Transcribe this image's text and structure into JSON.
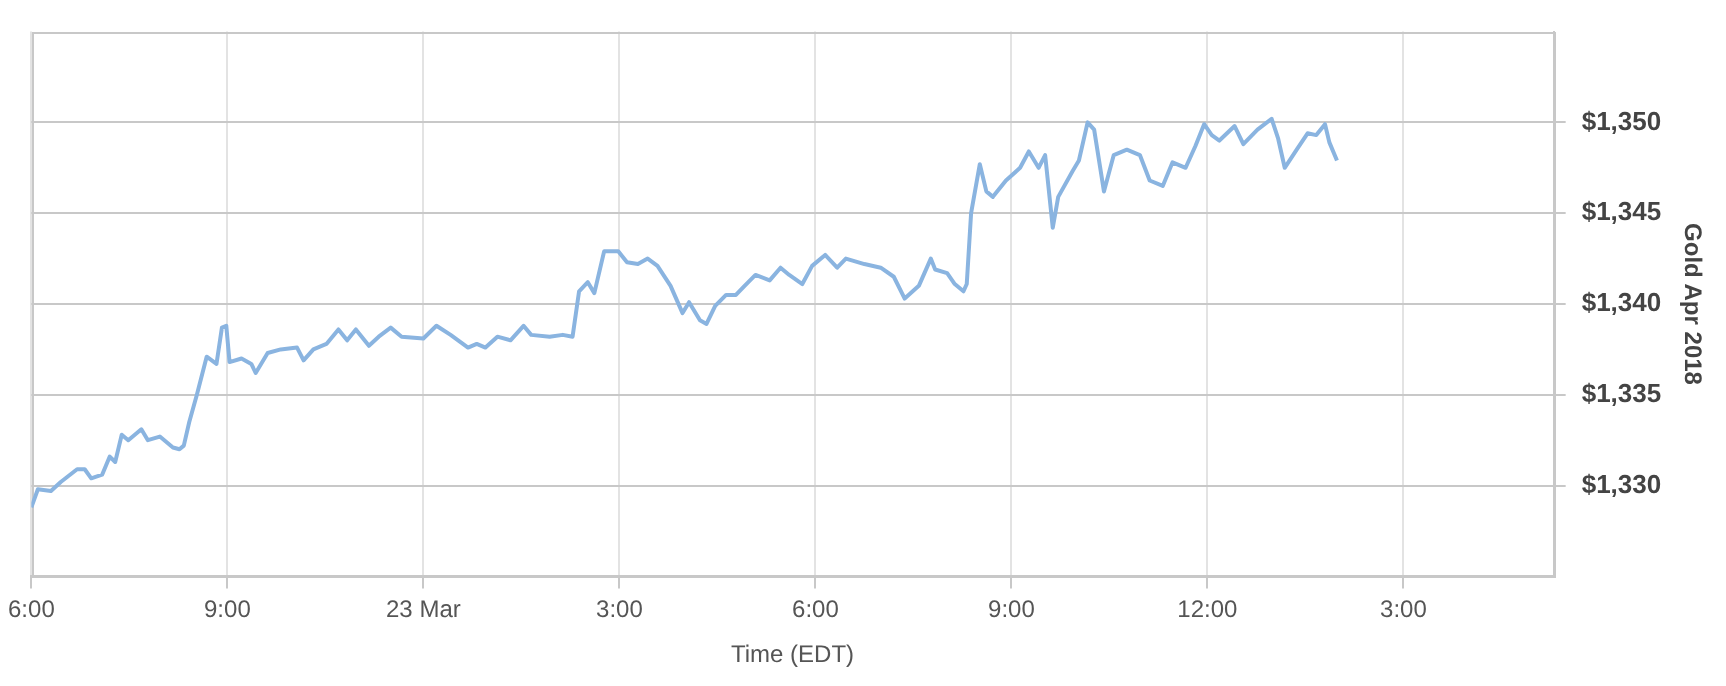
{
  "chart_data": {
    "type": "line",
    "xlabel": "Time (EDT)",
    "ylabel": "Gold Apr 2018",
    "x": [
      "--03-22T18:00",
      "--03-22T18:06",
      "--03-22T18:18",
      "--03-22T18:27",
      "--03-22T18:42",
      "--03-22T18:49",
      "--03-22T18:55",
      "--03-22T19:05",
      "--03-22T19:12",
      "--03-22T19:17",
      "--03-22T19:23",
      "--03-22T19:29",
      "--03-22T19:41",
      "--03-22T19:47",
      "--03-22T19:58",
      "--03-22T20:10",
      "--03-22T20:16",
      "--03-22T20:20",
      "--03-22T20:25",
      "--03-22T20:32",
      "--03-22T20:41",
      "--03-22T20:50",
      "--03-22T20:55",
      "--03-22T20:59",
      "--03-22T21:02",
      "--03-22T21:13",
      "--03-22T21:22",
      "--03-22T21:26",
      "--03-22T21:37",
      "--03-22T21:49",
      "--03-22T22:04",
      "--03-22T22:10",
      "--03-22T22:19",
      "--03-22T22:31",
      "--03-22T22:42",
      "--03-22T22:50",
      "--03-22T22:58",
      "--03-22T23:10",
      "--03-22T23:19",
      "--03-22T23:30",
      "--03-22T23:40",
      "--03-23T00:00",
      "--03-23T00:12",
      "--03-23T00:25",
      "--03-23T00:41",
      "--03-23T00:49",
      "--03-23T00:57",
      "--03-23T01:08",
      "--03-23T01:20",
      "--03-23T01:32",
      "--03-23T01:39",
      "--03-23T01:56",
      "--03-23T02:08",
      "--03-23T02:17",
      "--03-23T02:23",
      "--03-23T02:31",
      "--03-23T02:37",
      "--03-23T02:46",
      "--03-23T02:59",
      "--03-23T03:07",
      "--03-23T03:17",
      "--03-23T03:26",
      "--03-23T03:35",
      "--03-23T03:47",
      "--03-23T03:58",
      "--03-23T04:04",
      "--03-23T04:14",
      "--03-23T04:20",
      "--03-23T04:28",
      "--03-23T04:38",
      "--03-23T04:47",
      "--03-23T04:55",
      "--03-23T05:05",
      "--03-23T05:18",
      "--03-23T05:28",
      "--03-23T05:36",
      "--03-23T05:48",
      "--03-23T05:57",
      "--03-23T06:09",
      "--03-23T06:20",
      "--03-23T06:28",
      "--03-23T06:45",
      "--03-23T07:00",
      "--03-23T07:12",
      "--03-23T07:22",
      "--03-23T07:35",
      "--03-23T07:46",
      "--03-23T07:50",
      "--03-23T08:01",
      "--03-23T08:08",
      "--03-23T08:16",
      "--03-23T08:19",
      "--03-23T08:23",
      "--03-23T08:31",
      "--03-23T08:37",
      "--03-23T08:43",
      "--03-23T08:55",
      "--03-23T09:08",
      "--03-23T09:16",
      "--03-23T09:25",
      "--03-23T09:31",
      "--03-23T09:38",
      "--03-23T09:43",
      "--03-23T09:56",
      "--03-23T10:02",
      "--03-23T10:10",
      "--03-23T10:16",
      "--03-23T10:25",
      "--03-23T10:34",
      "--03-23T10:46",
      "--03-23T10:58",
      "--03-23T11:07",
      "--03-23T11:19",
      "--03-23T11:28",
      "--03-23T11:40",
      "--03-23T11:49",
      "--03-23T11:57",
      "--03-23T12:04",
      "--03-23T12:11",
      "--03-23T12:25",
      "--03-23T12:33",
      "--03-23T12:46",
      "--03-23T12:59",
      "--03-23T13:05",
      "--03-23T13:11",
      "--03-23T13:22",
      "--03-23T13:32",
      "--03-23T13:40",
      "--03-23T13:48",
      "--03-23T13:52",
      "--03-23T13:59"
    ],
    "series": [
      {
        "color": "#8ab4e0",
        "values": [
          1328.8,
          1329.8,
          1329.7,
          1330.2,
          1330.9,
          1330.9,
          1330.4,
          1330.6,
          1331.6,
          1331.3,
          1332.8,
          1332.5,
          1333.1,
          1332.5,
          1332.7,
          1332.1,
          1332.0,
          1332.2,
          1333.5,
          1335.0,
          1337.1,
          1336.7,
          1338.7,
          1338.8,
          1336.8,
          1337.0,
          1336.7,
          1336.2,
          1337.3,
          1337.5,
          1337.6,
          1336.9,
          1337.5,
          1337.8,
          1338.6,
          1338.0,
          1338.6,
          1337.7,
          1338.2,
          1338.7,
          1338.2,
          1338.1,
          1338.8,
          1338.3,
          1337.6,
          1337.8,
          1337.6,
          1338.2,
          1338.0,
          1338.8,
          1338.3,
          1338.2,
          1338.3,
          1338.2,
          1340.7,
          1341.2,
          1340.6,
          1342.9,
          1342.9,
          1342.3,
          1342.2,
          1342.5,
          1342.1,
          1341.0,
          1339.5,
          1340.1,
          1339.1,
          1338.9,
          1339.9,
          1340.5,
          1340.5,
          1341.0,
          1341.6,
          1341.3,
          1342.0,
          1341.6,
          1341.1,
          1342.1,
          1342.7,
          1342.0,
          1342.5,
          1342.2,
          1342.0,
          1341.5,
          1340.3,
          1341.0,
          1342.5,
          1341.9,
          1341.7,
          1341.1,
          1340.7,
          1341.1,
          1345.0,
          1347.7,
          1346.2,
          1345.9,
          1346.8,
          1347.5,
          1348.4,
          1347.5,
          1348.2,
          1344.2,
          1345.9,
          1347.3,
          1347.9,
          1350.0,
          1349.6,
          1346.2,
          1348.2,
          1348.5,
          1348.2,
          1346.8,
          1346.5,
          1347.8,
          1347.5,
          1348.7,
          1349.9,
          1349.3,
          1349.0,
          1349.8,
          1348.8,
          1349.6,
          1350.2,
          1349.1,
          1347.5,
          1348.5,
          1349.4,
          1349.3,
          1349.9,
          1348.9,
          1347.9
        ]
      }
    ],
    "xlim": [
      "--03-22T18:00",
      "--03-23T17:18"
    ],
    "xticks": [
      {
        "value": "--03-22T18:00",
        "label": "6:00"
      },
      {
        "value": "--03-22T21:00",
        "label": "9:00"
      },
      {
        "value": "--03-23T00:00",
        "label": "23 Mar"
      },
      {
        "value": "--03-23T03:00",
        "label": "3:00"
      },
      {
        "value": "--03-23T06:00",
        "label": "6:00"
      },
      {
        "value": "--03-23T09:00",
        "label": "9:00"
      },
      {
        "value": "--03-23T12:00",
        "label": "12:00"
      },
      {
        "value": "--03-23T15:00",
        "label": "3:00"
      }
    ],
    "ylim": [
      1325,
      1355
    ],
    "yticks": [
      {
        "value": 1330,
        "label": "$1,330"
      },
      {
        "value": 1335,
        "label": "$1,335"
      },
      {
        "value": 1340,
        "label": "$1,340"
      },
      {
        "value": 1345,
        "label": "$1,345"
      },
      {
        "value": 1350,
        "label": "$1,350"
      }
    ],
    "grid": true,
    "legend": false,
    "marker": "none",
    "line_style": "solid"
  }
}
